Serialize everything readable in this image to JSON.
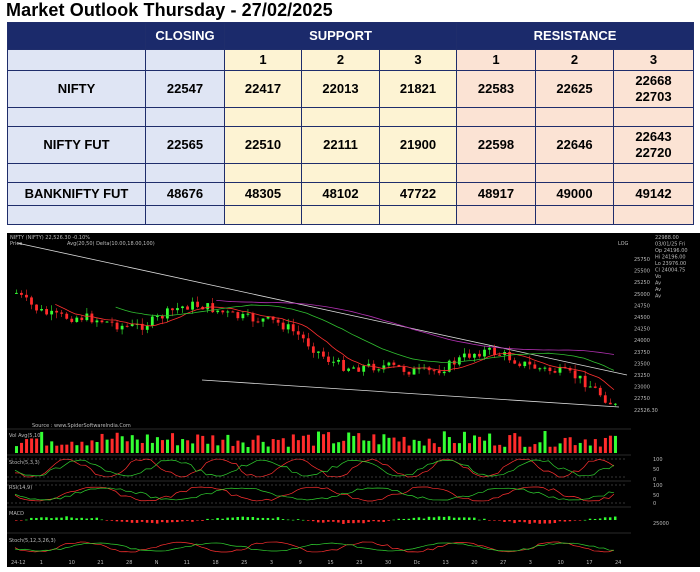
{
  "title": "Market Outlook Thursday - 27/02/2025",
  "table": {
    "headers": {
      "closing": "CLOSING",
      "support": "SUPPORT",
      "resistance": "RESISTANCE"
    },
    "levels": [
      "1",
      "2",
      "3"
    ],
    "rows": [
      {
        "name": "NIFTY",
        "closing": "22547",
        "s1": "22417",
        "s2": "22013",
        "s3": "21821",
        "r1": "22583",
        "r2": "22625",
        "r3a": "22668",
        "r3b": "22703"
      },
      {
        "name": "NIFTY FUT",
        "closing": "22565",
        "s1": "22510",
        "s2": "22111",
        "s3": "21900",
        "r1": "22598",
        "r2": "22646",
        "r3a": "22643",
        "r3b": "22720"
      },
      {
        "name": "BANKNIFTY FUT",
        "closing": "48676",
        "s1": "48305",
        "s2": "48102",
        "s3": "47722",
        "r1": "48917",
        "r2": "49000",
        "r3a": "49142",
        "r3b": ""
      }
    ]
  },
  "chart": {
    "header": "NIFTY (NIFTY) 22,526.30 -0.10%",
    "price_panel_label": "Price",
    "ma_legend": "Avg(20,50)  Delta(10.00,18.00,100)",
    "log_label": "LOG",
    "source": "Source : www.SpiderSoftwareIndia.Com",
    "volume_label": "Vol   Avg(5,10)",
    "indicator_labels": [
      "Stoch(5,3,3)",
      "RSI(14,9)",
      "MACD",
      "Stoch(5,12,3,26,3)"
    ],
    "price_axis_ticks": [
      "25750",
      "25500",
      "25250",
      "25000",
      "24750",
      "24500",
      "24250",
      "24000",
      "23750",
      "23500",
      "23250",
      "23000",
      "22750",
      "22526.30"
    ],
    "indicator_axis_ticks": [
      "100",
      "50",
      "0",
      "100",
      "50",
      "0",
      "25000"
    ],
    "x_labels": [
      "24-12",
      "1",
      "10",
      "21",
      "28",
      "N",
      "11",
      "18",
      "25",
      "3",
      "9",
      "15",
      "23",
      "30",
      "Dc",
      "13",
      "20",
      "27",
      "3",
      "10",
      "17",
      "24"
    ],
    "info_panel": [
      "22988.00",
      "03/01/25 Fri",
      "Op  24196.00",
      "Hi  24196.00",
      "Lo  23976.00",
      "Cl  24004.75",
      "Vo",
      "Av",
      "Av",
      "Av"
    ],
    "colors": {
      "up": "#33ff33",
      "down": "#ff2b2b",
      "ma_fast": "#ff3030",
      "ma_mid": "#30c030",
      "ma_slow": "#b030b0",
      "trendline": "#dddddd"
    }
  }
}
